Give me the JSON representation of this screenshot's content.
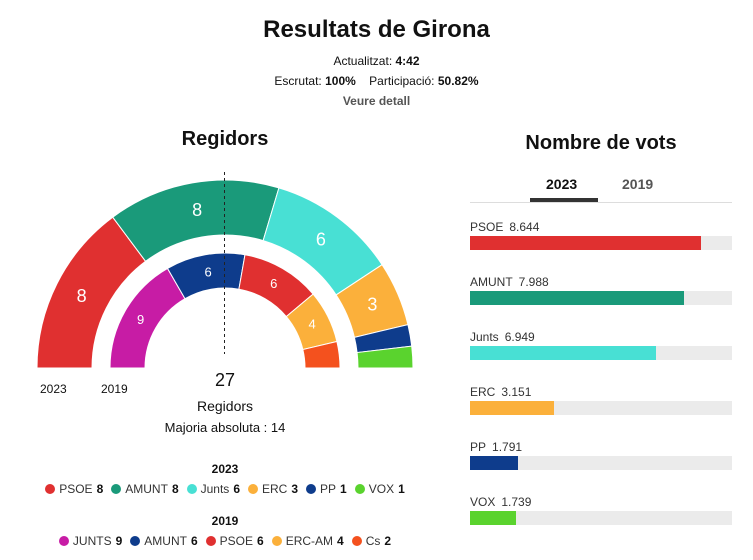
{
  "header": {
    "title": "Resultats de Girona",
    "updated_label": "Actualitzat:",
    "updated_value": "4:42",
    "counted_label": "Escrutat:",
    "counted_value": "100%",
    "participation_label": "Participació:",
    "participation_value": "50.82%",
    "detail_link": "Veure detall"
  },
  "seats": {
    "title": "Regidors",
    "year_outer": "2023",
    "year_inner": "2019",
    "total": "27",
    "total_label": "Regidors",
    "majority": "Majoria absoluta : 14",
    "outer": [
      {
        "party": "PSOE",
        "seats": 8,
        "color": "#e03030"
      },
      {
        "party": "AMUNT",
        "seats": 8,
        "color": "#1a9a7a"
      },
      {
        "party": "Junts",
        "seats": 6,
        "color": "#48e0d4"
      },
      {
        "party": "ERC",
        "seats": 3,
        "color": "#fbb03b"
      },
      {
        "party": "PP",
        "seats": 1,
        "color": "#0e3c8c"
      },
      {
        "party": "VOX",
        "seats": 1,
        "color": "#5ad32e"
      }
    ],
    "inner": [
      {
        "party": "JUNTS",
        "seats": 9,
        "color": "#c71ca5"
      },
      {
        "party": "AMUNT",
        "seats": 6,
        "color": "#0e3c8c"
      },
      {
        "party": "PSOE",
        "seats": 6,
        "color": "#e03030"
      },
      {
        "party": "ERC-AM",
        "seats": 4,
        "color": "#fbb03b"
      },
      {
        "party": "Cs",
        "seats": 2,
        "color": "#f4511e"
      }
    ]
  },
  "legend_2023": {
    "year": "2023",
    "items": [
      {
        "party": "PSOE",
        "seats": "8",
        "color": "#e03030"
      },
      {
        "party": "AMUNT",
        "seats": "8",
        "color": "#1a9a7a"
      },
      {
        "party": "Junts",
        "seats": "6",
        "color": "#48e0d4"
      },
      {
        "party": "ERC",
        "seats": "3",
        "color": "#fbb03b"
      },
      {
        "party": "PP",
        "seats": "1",
        "color": "#0e3c8c"
      },
      {
        "party": "VOX",
        "seats": "1",
        "color": "#5ad32e"
      }
    ]
  },
  "legend_2019": {
    "year": "2019",
    "items": [
      {
        "party": "JUNTS",
        "seats": "9",
        "color": "#c71ca5"
      },
      {
        "party": "AMUNT",
        "seats": "6",
        "color": "#0e3c8c"
      },
      {
        "party": "PSOE",
        "seats": "6",
        "color": "#e03030"
      },
      {
        "party": "ERC-AM",
        "seats": "4",
        "color": "#fbb03b"
      },
      {
        "party": "Cs",
        "seats": "2",
        "color": "#f4511e"
      }
    ]
  },
  "votes": {
    "title": "Nombre de vots",
    "tabs": [
      {
        "label": "2023",
        "active": true
      },
      {
        "label": "2019",
        "active": false
      }
    ],
    "max": 9800,
    "rows": [
      {
        "party": "PSOE",
        "votes_label": "8.644",
        "votes": 8644,
        "color": "#e03030"
      },
      {
        "party": "AMUNT",
        "votes_label": "7.988",
        "votes": 7988,
        "color": "#1a9a7a"
      },
      {
        "party": "Junts",
        "votes_label": "6.949",
        "votes": 6949,
        "color": "#48e0d4"
      },
      {
        "party": "ERC",
        "votes_label": "3.151",
        "votes": 3151,
        "color": "#fbb03b"
      },
      {
        "party": "PP",
        "votes_label": "1.791",
        "votes": 1791,
        "color": "#0e3c8c"
      },
      {
        "party": "VOX",
        "votes_label": "1.739",
        "votes": 1739,
        "color": "#5ad32e"
      }
    ]
  }
}
